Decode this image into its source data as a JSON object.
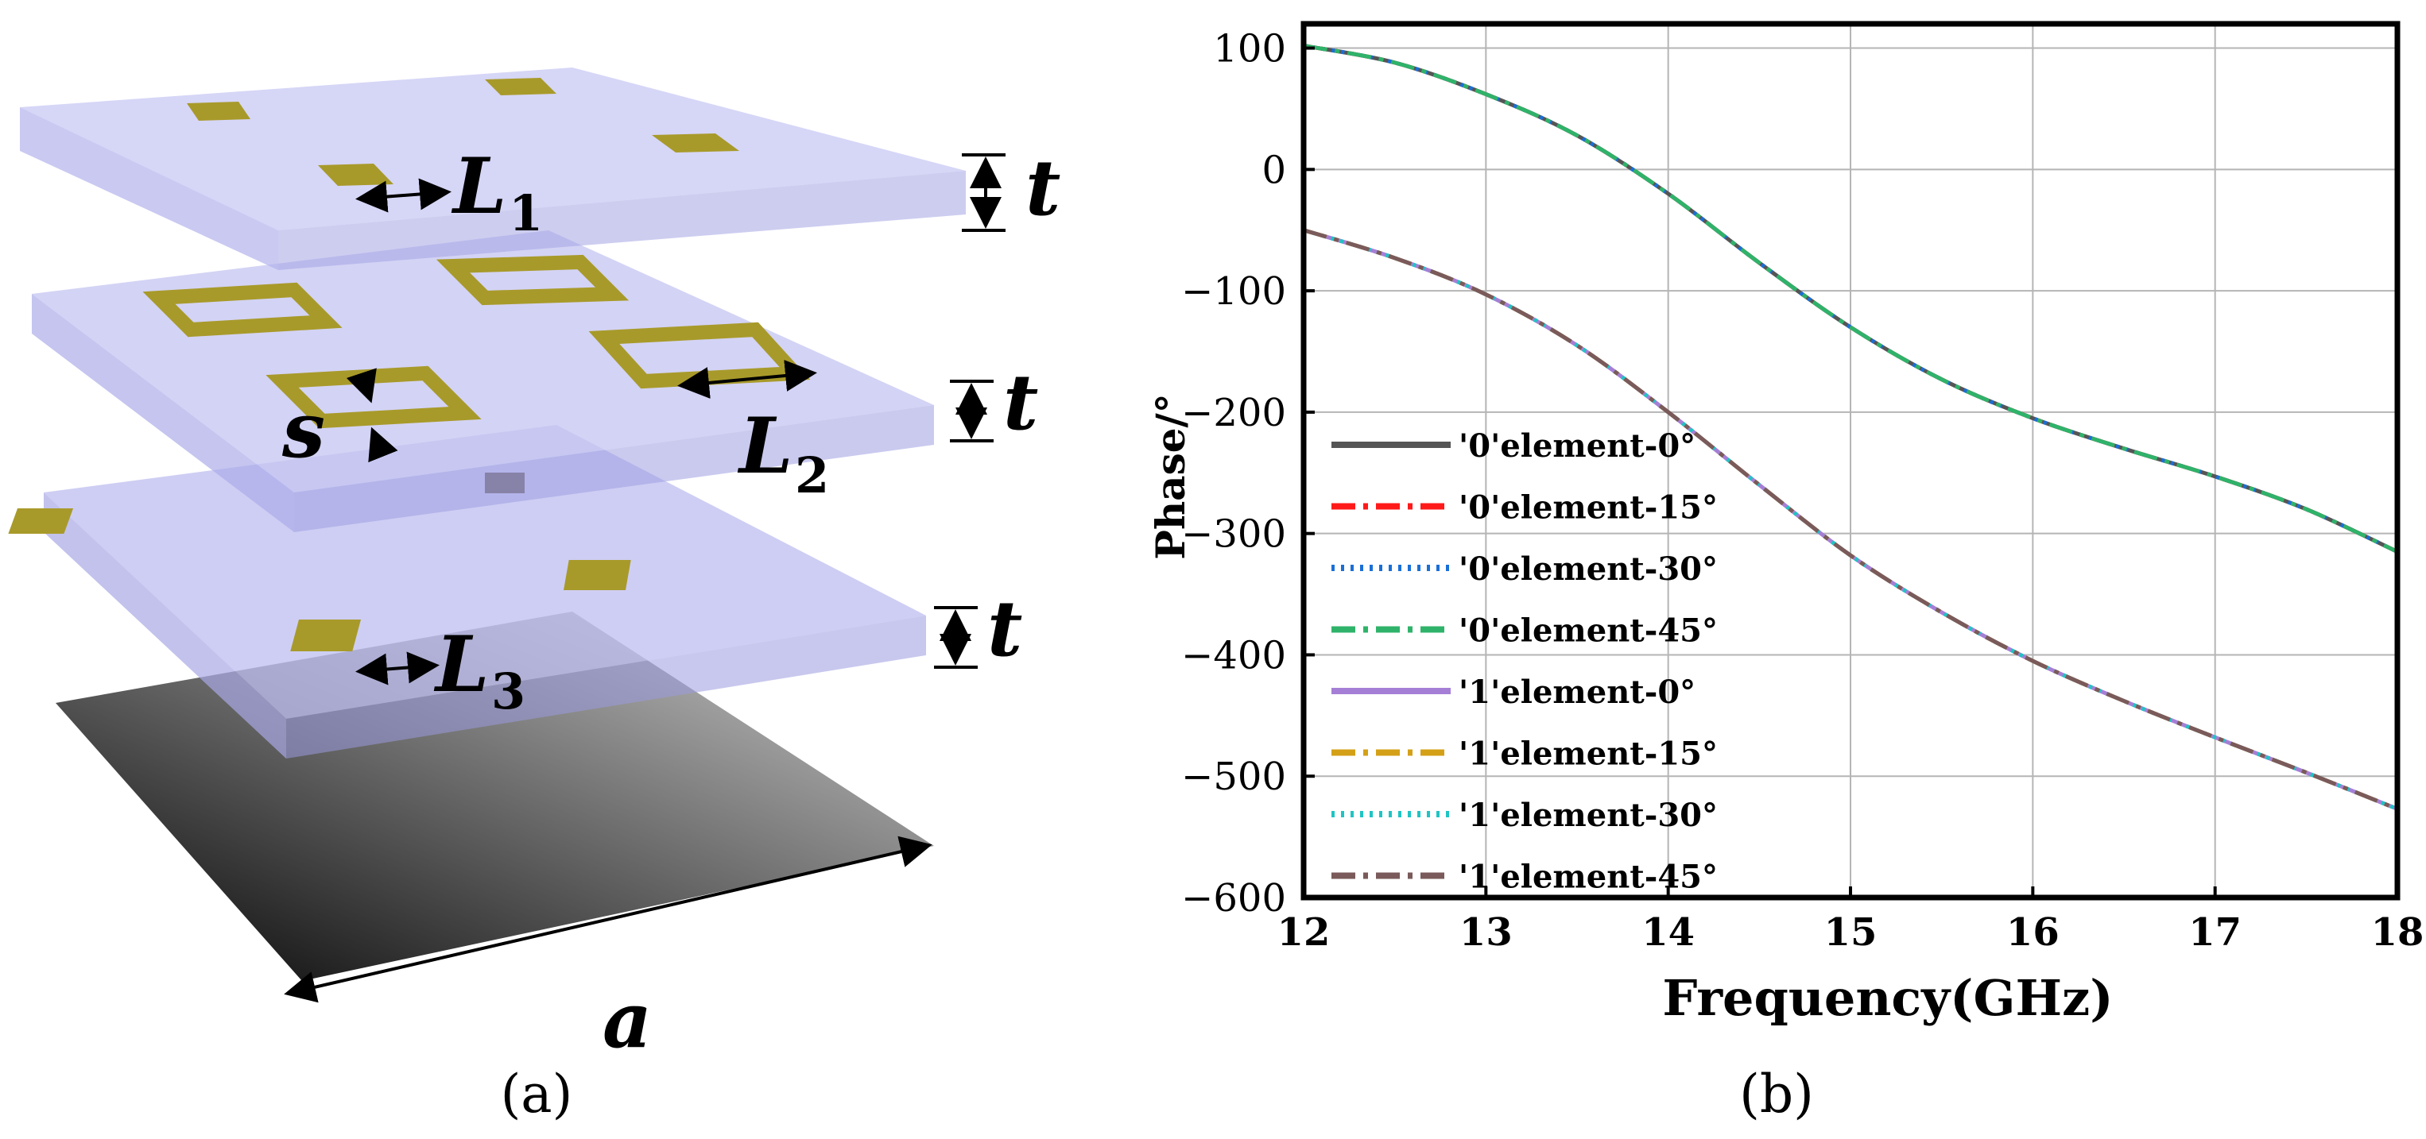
{
  "left_panel": {
    "caption": "(a)",
    "labels": {
      "L1": "L",
      "L1_sub": "1",
      "L2": "L",
      "L2_sub": "2",
      "L3": "L",
      "L3_sub": "3",
      "t": "t",
      "s": "s",
      "a": "a"
    },
    "colors": {
      "substrate": "#b9b9ef",
      "metal": "#a89a2a",
      "ground_dark": "#000000",
      "ground_light": "#c9c9c9"
    }
  },
  "right_panel": {
    "caption": "(b)"
  },
  "chart_data": {
    "type": "line",
    "xlabel": "Frequency(GHz)",
    "ylabel": "Phase/°",
    "xlim": [
      12,
      18
    ],
    "ylim": [
      -600,
      120
    ],
    "xticks": [
      12,
      13,
      14,
      15,
      16,
      17,
      18
    ],
    "yticks": [
      100,
      0,
      -100,
      -200,
      -300,
      -400,
      -500,
      -600
    ],
    "grid": true,
    "legend_position": "bottom-left",
    "x": [
      12,
      12.5,
      13,
      13.5,
      14,
      14.5,
      15,
      15.5,
      16,
      16.5,
      17,
      17.5,
      18
    ],
    "series": [
      {
        "name": "'0'element-0°",
        "color": "#555555",
        "dash": "solid",
        "group": "0"
      },
      {
        "name": "'0'element-15°",
        "color": "#ff1a1a",
        "dash": "dashdot",
        "group": "0"
      },
      {
        "name": "'0'element-30°",
        "color": "#1a6fd6",
        "dash": "dot",
        "group": "0"
      },
      {
        "name": "'0'element-45°",
        "color": "#2fb36a",
        "dash": "dashdot",
        "group": "0"
      },
      {
        "name": "'1'element-0°",
        "color": "#a57fd6",
        "dash": "solid",
        "group": "1"
      },
      {
        "name": "'1'element-15°",
        "color": "#d4a017",
        "dash": "dashdot",
        "group": "1"
      },
      {
        "name": "'1'element-30°",
        "color": "#1fc4c4",
        "dash": "dot",
        "group": "1"
      },
      {
        "name": "'1'element-45°",
        "color": "#7a5a5a",
        "dash": "dashdot",
        "group": "1"
      }
    ],
    "group_values": {
      "0": [
        102,
        88,
        62,
        28,
        -20,
        -77,
        -130,
        -173,
        -205,
        -230,
        -253,
        -280,
        -315
      ],
      "1": [
        -50,
        -73,
        -103,
        -145,
        -200,
        -260,
        -318,
        -365,
        -405,
        -438,
        -468,
        -497,
        -527
      ]
    }
  }
}
